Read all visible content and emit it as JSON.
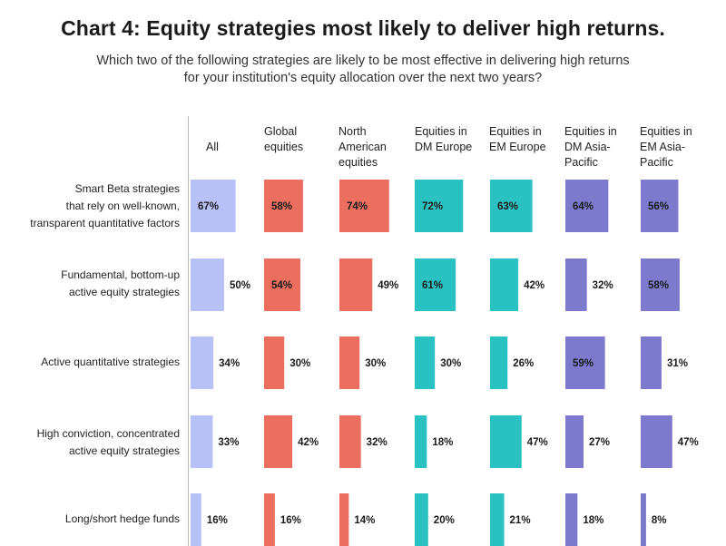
{
  "chart_data": {
    "type": "bar",
    "title": "Chart 4: Equity strategies most likely to deliver high returns.",
    "subtitle": "Which two of the following strategies are likely to be most effective in delivering high returns for your institution's equity allocation over the next two years?",
    "columns": [
      "All",
      "Global equities",
      "North American equities",
      "Equities in DM Europe",
      "Equities in EM Europe",
      "Equities in DM Asia-Pacific",
      "Equities in EM Asia-Pacific"
    ],
    "column_colors": [
      "#b8c1f7",
      "#ec6e5f",
      "#ec6e5f",
      "#29c1c2",
      "#29c1c2",
      "#7d79cd",
      "#7d79cd"
    ],
    "categories": [
      "Smart Beta strategies that rely on well-known, transparent quantitative factors",
      "Fundamental, bottom-up active equity strategies",
      "Active quantitative strategies",
      "High conviction, concentrated active equity strategies",
      "Long/short hedge funds"
    ],
    "values": [
      [
        67,
        58,
        74,
        72,
        63,
        64,
        56
      ],
      [
        50,
        54,
        49,
        61,
        42,
        32,
        58
      ],
      [
        34,
        30,
        30,
        30,
        26,
        59,
        31
      ],
      [
        33,
        42,
        32,
        18,
        47,
        27,
        47
      ],
      [
        16,
        16,
        14,
        20,
        21,
        18,
        8
      ]
    ],
    "unit": "%"
  },
  "headers": {
    "col0": [
      "All"
    ],
    "col1": [
      "Global",
      "equities"
    ],
    "col2": [
      "North",
      "American",
      "equities"
    ],
    "col3": [
      "Equities in",
      "DM Europe"
    ],
    "col4": [
      "Equities in",
      "EM Europe"
    ],
    "col5": [
      "Equities in",
      "DM Asia-",
      "Pacific"
    ],
    "col6": [
      "Equities in",
      "EM Asia-",
      "Pacific"
    ]
  },
  "row_labels": {
    "row0": [
      "Smart Beta strategies",
      "that rely on well-known,",
      "transparent quantitative factors"
    ],
    "row1": [
      "Fundamental, bottom-up",
      "active equity strategies"
    ],
    "row2": [
      "Active quantitative strategies"
    ],
    "row3": [
      "High conviction, concentrated",
      "active equity strategies"
    ],
    "row4": [
      "Long/short hedge funds"
    ]
  }
}
